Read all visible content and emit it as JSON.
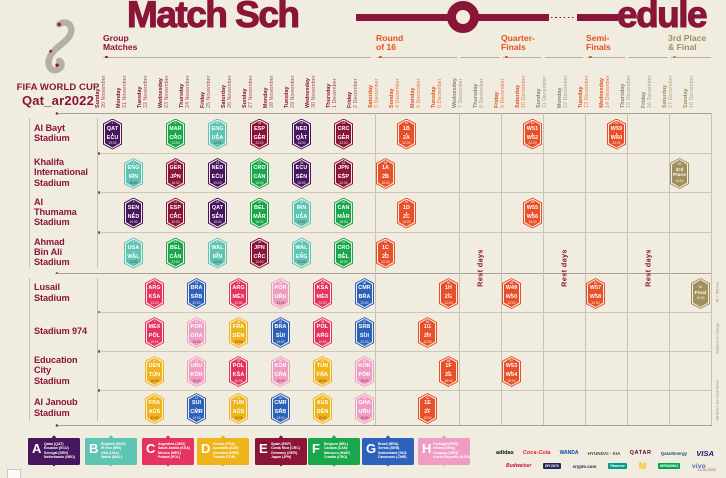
{
  "title": {
    "left": "Match Sch",
    "right": "edule"
  },
  "branding": {
    "line1": "FIFA WORLD CUP",
    "line2": "Qat_ar2022"
  },
  "colors": {
    "bg": "#f0ecdf",
    "maroon": "#8a1538",
    "orange": "#e4511e",
    "tan": "#a18f5f",
    "groups": {
      "A": "#46175e",
      "B": "#5ec4b4",
      "C": "#e53362",
      "D": "#f0b41b",
      "E": "#8a1538",
      "F": "#19a74b",
      "G": "#2d62bb",
      "H": "#f09dc4"
    }
  },
  "phases": [
    {
      "l1": "Group",
      "l2": "Matches"
    },
    {
      "l1": "Round",
      "l2": "of 16"
    },
    {
      "l1": "Quarter-",
      "l2": "Finals"
    },
    {
      "l1": "Semi-",
      "l2": "Finals"
    },
    {
      "l1": "3rd Place",
      "l2": "& Final"
    }
  ],
  "rest_label": "Rest days",
  "notes": [
    "W = Winner",
    "Subject to change",
    "All times are local times"
  ],
  "footer_date": "11.04.2022",
  "columns": [
    {
      "day": "Sunday",
      "date": "20 November",
      "ph": "group"
    },
    {
      "day": "Monday",
      "date": "21 November",
      "ph": "group"
    },
    {
      "day": "Tuesday",
      "date": "22 November",
      "ph": "group"
    },
    {
      "day": "Wednesday",
      "date": "23 November",
      "ph": "group"
    },
    {
      "day": "Thursday",
      "date": "24 November",
      "ph": "group"
    },
    {
      "day": "Friday",
      "date": "25 November",
      "ph": "group"
    },
    {
      "day": "Saturday",
      "date": "26 November",
      "ph": "group"
    },
    {
      "day": "Sunday",
      "date": "27 November",
      "ph": "group"
    },
    {
      "day": "Monday",
      "date": "28 November",
      "ph": "group"
    },
    {
      "day": "Tuesday",
      "date": "29 November",
      "ph": "group"
    },
    {
      "day": "Wednesday",
      "date": "30 November",
      "ph": "group"
    },
    {
      "day": "Thursday",
      "date": "1 December",
      "ph": "group"
    },
    {
      "day": "Friday",
      "date": "2 December",
      "ph": "group"
    },
    {
      "day": "Saturday",
      "date": "3 December",
      "ph": "r16"
    },
    {
      "day": "Sunday",
      "date": "4 December",
      "ph": "r16"
    },
    {
      "day": "Monday",
      "date": "5 December",
      "ph": "r16"
    },
    {
      "day": "Tuesday",
      "date": "6 December",
      "ph": "r16"
    },
    {
      "day": "Wednesday",
      "date": "7 December",
      "ph": "rest"
    },
    {
      "day": "Thursday",
      "date": "8 December",
      "ph": "rest"
    },
    {
      "day": "Friday",
      "date": "9 December",
      "ph": "qf"
    },
    {
      "day": "Saturday",
      "date": "10 December",
      "ph": "qf"
    },
    {
      "day": "Sunday",
      "date": "11 December",
      "ph": "rest"
    },
    {
      "day": "Monday",
      "date": "12 December",
      "ph": "rest"
    },
    {
      "day": "Tuesday",
      "date": "13 December",
      "ph": "sf"
    },
    {
      "day": "Wednesday",
      "date": "14 December",
      "ph": "sf"
    },
    {
      "day": "Thursday",
      "date": "15 December",
      "ph": "rest"
    },
    {
      "day": "Friday",
      "date": "16 December",
      "ph": "rest"
    },
    {
      "day": "Saturday",
      "date": "17 December",
      "ph": "final"
    },
    {
      "day": "Sunday",
      "date": "18 December",
      "ph": "final"
    }
  ],
  "stadiums": [
    {
      "lines": [
        "Al Bayt",
        "Stadium"
      ]
    },
    {
      "lines": [
        "Khalifa",
        "International",
        "Stadium"
      ]
    },
    {
      "lines": [
        "Al",
        "Thumama",
        "Stadium"
      ]
    },
    {
      "lines": [
        "Ahmad",
        "Bin Ali",
        "Stadium"
      ]
    },
    {
      "lines": [
        "Lusail",
        "Stadium"
      ]
    },
    {
      "lines": [
        "Stadium 974"
      ]
    },
    {
      "lines": [
        "Education",
        "City",
        "Stadium"
      ]
    },
    {
      "lines": [
        "Al Janoub",
        "Stadium"
      ]
    }
  ],
  "matches": [
    {
      "n": "1",
      "a": "QAT",
      "b": "ECU",
      "t": "19:00",
      "g": "A",
      "c": 0,
      "s": 0
    },
    {
      "n": "2",
      "a": "ENG",
      "b": "IRN",
      "t": "16:00",
      "g": "B",
      "c": 1,
      "s": 1
    },
    {
      "n": "3",
      "a": "SEN",
      "b": "NED",
      "t": "19:00",
      "g": "A",
      "c": 1,
      "s": 2
    },
    {
      "n": "4",
      "a": "USA",
      "b": "WAL",
      "t": "22:00",
      "g": "B",
      "c": 1,
      "s": 3
    },
    {
      "n": "5",
      "a": "ARG",
      "b": "KSA",
      "t": "13:00",
      "g": "C",
      "c": 2,
      "s": 4
    },
    {
      "n": "6",
      "a": "DEN",
      "b": "TUN",
      "t": "16:00",
      "g": "D",
      "c": 2,
      "s": 6
    },
    {
      "n": "7",
      "a": "MEX",
      "b": "POL",
      "t": "19:00",
      "g": "C",
      "c": 2,
      "s": 5
    },
    {
      "n": "8",
      "a": "FRA",
      "b": "AUS",
      "t": "22:00",
      "g": "D",
      "c": 2,
      "s": 7
    },
    {
      "n": "9",
      "a": "MAR",
      "b": "CRO",
      "t": "13:00",
      "g": "F",
      "c": 3,
      "s": 0
    },
    {
      "n": "10",
      "a": "GER",
      "b": "JPN",
      "t": "16:00",
      "g": "E",
      "c": 3,
      "s": 1
    },
    {
      "n": "11",
      "a": "ESP",
      "b": "CRC",
      "t": "19:00",
      "g": "E",
      "c": 3,
      "s": 2
    },
    {
      "n": "12",
      "a": "BEL",
      "b": "CAN",
      "t": "22:00",
      "g": "F",
      "c": 3,
      "s": 3
    },
    {
      "n": "13",
      "a": "SUI",
      "b": "CMR",
      "t": "13:00",
      "g": "G",
      "c": 4,
      "s": 7
    },
    {
      "n": "14",
      "a": "URU",
      "b": "KOR",
      "t": "16:00",
      "g": "H",
      "c": 4,
      "s": 6
    },
    {
      "n": "15",
      "a": "POR",
      "b": "GHA",
      "t": "19:00",
      "g": "H",
      "c": 4,
      "s": 5
    },
    {
      "n": "16",
      "a": "BRA",
      "b": "SRB",
      "t": "22:00",
      "g": "G",
      "c": 4,
      "s": 4
    },
    {
      "n": "17",
      "a": "WAL",
      "b": "IRN",
      "t": "13:00",
      "g": "B",
      "c": 5,
      "s": 3
    },
    {
      "n": "18",
      "a": "QAT",
      "b": "SEN",
      "t": "16:00",
      "g": "A",
      "c": 5,
      "s": 2
    },
    {
      "n": "19",
      "a": "NED",
      "b": "ECU",
      "t": "19:00",
      "g": "A",
      "c": 5,
      "s": 1
    },
    {
      "n": "20",
      "a": "ENG",
      "b": "USA",
      "t": "22:00",
      "g": "B",
      "c": 5,
      "s": 0
    },
    {
      "n": "21",
      "a": "TUN",
      "b": "AUS",
      "t": "13:00",
      "g": "D",
      "c": 6,
      "s": 7
    },
    {
      "n": "22",
      "a": "POL",
      "b": "KSA",
      "t": "16:00",
      "g": "C",
      "c": 6,
      "s": 6
    },
    {
      "n": "23",
      "a": "FRA",
      "b": "DEN",
      "t": "19:00",
      "g": "D",
      "c": 6,
      "s": 5
    },
    {
      "n": "24",
      "a": "ARG",
      "b": "MEX",
      "t": "22:00",
      "g": "C",
      "c": 6,
      "s": 4
    },
    {
      "n": "25",
      "a": "JPN",
      "b": "CRC",
      "t": "13:00",
      "g": "E",
      "c": 7,
      "s": 3
    },
    {
      "n": "26",
      "a": "BEL",
      "b": "MAR",
      "t": "16:00",
      "g": "F",
      "c": 7,
      "s": 2
    },
    {
      "n": "27",
      "a": "CRO",
      "b": "CAN",
      "t": "19:00",
      "g": "F",
      "c": 7,
      "s": 1
    },
    {
      "n": "28",
      "a": "ESP",
      "b": "GER",
      "t": "22:00",
      "g": "E",
      "c": 7,
      "s": 0
    },
    {
      "n": "29",
      "a": "CMR",
      "b": "SRB",
      "t": "13:00",
      "g": "G",
      "c": 8,
      "s": 7
    },
    {
      "n": "30",
      "a": "KOR",
      "b": "GHA",
      "t": "16:00",
      "g": "H",
      "c": 8,
      "s": 6
    },
    {
      "n": "31",
      "a": "BRA",
      "b": "SUI",
      "t": "19:00",
      "g": "G",
      "c": 8,
      "s": 5
    },
    {
      "n": "32",
      "a": "POR",
      "b": "URU",
      "t": "22:00",
      "g": "H",
      "c": 8,
      "s": 4
    },
    {
      "n": "33",
      "a": "ECU",
      "b": "SEN",
      "t": "18:00",
      "g": "A",
      "c": 9,
      "s": 1
    },
    {
      "n": "34",
      "a": "NED",
      "b": "QAT",
      "t": "18:00",
      "g": "A",
      "c": 9,
      "s": 0
    },
    {
      "n": "35",
      "a": "IRN",
      "b": "USA",
      "t": "22:00",
      "g": "B",
      "c": 9,
      "s": 2
    },
    {
      "n": "36",
      "a": "WAL",
      "b": "ENG",
      "t": "22:00",
      "g": "B",
      "c": 9,
      "s": 3
    },
    {
      "n": "37",
      "a": "TUN",
      "b": "FRA",
      "t": "18:00",
      "g": "D",
      "c": 10,
      "s": 6
    },
    {
      "n": "38",
      "a": "AUS",
      "b": "DEN",
      "t": "18:00",
      "g": "D",
      "c": 10,
      "s": 7
    },
    {
      "n": "39",
      "a": "POL",
      "b": "ARG",
      "t": "22:00",
      "g": "C",
      "c": 10,
      "s": 5
    },
    {
      "n": "40",
      "a": "KSA",
      "b": "MEX",
      "t": "22:00",
      "g": "C",
      "c": 10,
      "s": 4
    },
    {
      "n": "41",
      "a": "CRO",
      "b": "BEL",
      "t": "18:00",
      "g": "F",
      "c": 11,
      "s": 3
    },
    {
      "n": "42",
      "a": "CAN",
      "b": "MAR",
      "t": "18:00",
      "g": "F",
      "c": 11,
      "s": 2
    },
    {
      "n": "43",
      "a": "JPN",
      "b": "ESP",
      "t": "22:00",
      "g": "E",
      "c": 11,
      "s": 1
    },
    {
      "n": "44",
      "a": "CRC",
      "b": "GER",
      "t": "22:00",
      "g": "E",
      "c": 11,
      "s": 0
    },
    {
      "n": "45",
      "a": "KOR",
      "b": "POR",
      "t": "18:00",
      "g": "H",
      "c": 12,
      "s": 6
    },
    {
      "n": "46",
      "a": "GHA",
      "b": "URU",
      "t": "18:00",
      "g": "H",
      "c": 12,
      "s": 7
    },
    {
      "n": "47",
      "a": "SRB",
      "b": "SUI",
      "t": "22:00",
      "g": "G",
      "c": 12,
      "s": 5
    },
    {
      "n": "48",
      "a": "CMR",
      "b": "BRA",
      "t": "22:00",
      "g": "G",
      "c": 12,
      "s": 4
    },
    {
      "n": "49",
      "a": "1A",
      "b": "2B",
      "t": "18:00",
      "g": "KO",
      "c": 13,
      "s": 1
    },
    {
      "n": "50",
      "a": "1C",
      "b": "2D",
      "t": "22:00",
      "g": "KO",
      "c": 13,
      "s": 3
    },
    {
      "n": "51",
      "a": "1D",
      "b": "2C",
      "t": "18:00",
      "g": "KO",
      "c": 14,
      "s": 2
    },
    {
      "n": "52",
      "a": "1B",
      "b": "2A",
      "t": "22:00",
      "g": "KO",
      "c": 14,
      "s": 0
    },
    {
      "n": "53",
      "a": "1E",
      "b": "2F",
      "t": "18:00",
      "g": "KO",
      "c": 15,
      "s": 7
    },
    {
      "n": "54",
      "a": "1G",
      "b": "2H",
      "t": "22:00",
      "g": "KO",
      "c": 15,
      "s": 5
    },
    {
      "n": "55",
      "a": "1F",
      "b": "2E",
      "t": "18:00",
      "g": "KO",
      "c": 16,
      "s": 6
    },
    {
      "n": "56",
      "a": "1H",
      "b": "2G",
      "t": "22:00",
      "g": "KO",
      "c": 16,
      "s": 4
    },
    {
      "n": "57",
      "a": "W53",
      "b": "W54",
      "t": "18:00",
      "g": "KO",
      "c": 19,
      "s": 6
    },
    {
      "n": "58",
      "a": "W49",
      "b": "W50",
      "t": "22:00",
      "g": "KO",
      "c": 19,
      "s": 4
    },
    {
      "n": "59",
      "a": "W55",
      "b": "W56",
      "t": "18:00",
      "g": "KO",
      "c": 20,
      "s": 2
    },
    {
      "n": "60",
      "a": "W51",
      "b": "W52",
      "t": "22:00",
      "g": "KO",
      "c": 20,
      "s": 0
    },
    {
      "n": "61",
      "a": "W57",
      "b": "W58",
      "t": "22:00",
      "g": "KO",
      "c": 23,
      "s": 4
    },
    {
      "n": "62",
      "a": "W59",
      "b": "W60",
      "t": "22:00",
      "g": "KO",
      "c": 24,
      "s": 0
    },
    {
      "n": "63",
      "a": "3rd",
      "b": "Place",
      "t": "18:00",
      "g": "FIN",
      "c": 27,
      "s": 1,
      "single": true
    },
    {
      "n": "64",
      "a": "Final",
      "b": "",
      "t": "18:00",
      "g": "FIN",
      "c": 28,
      "s": 4,
      "single": true
    }
  ],
  "legend": {
    "groups": [
      {
        "letter": "A",
        "color": "#46175e",
        "teams": [
          "Qatar (QAT)",
          "Ecuador (ECU)",
          "Senegal (SEN)",
          "Netherlands (NED)"
        ]
      },
      {
        "letter": "B",
        "color": "#5ec4b4",
        "teams": [
          "England (ENG)",
          "IR Iran (IRN)",
          "USA (USA)",
          "Wales (WAL)"
        ]
      },
      {
        "letter": "C",
        "color": "#e53362",
        "teams": [
          "Argentina (ARG)",
          "Saudi Arabia (KSA)",
          "Mexico (MEX)",
          "Poland (POL)"
        ]
      },
      {
        "letter": "D",
        "color": "#f0b41b",
        "teams": [
          "France (FRA)",
          "Australia (AUS)",
          "Denmark (DEN)",
          "Tunisia (TUN)"
        ]
      },
      {
        "letter": "E",
        "color": "#8a1538",
        "teams": [
          "Spain (ESP)",
          "Costa Rica (CRC)",
          "Germany (GER)",
          "Japan (JPN)"
        ]
      },
      {
        "letter": "F",
        "color": "#19a74b",
        "teams": [
          "Belgium (BEL)",
          "Canada (CAN)",
          "Morocco (MAR)",
          "Croatia (CRO)"
        ]
      },
      {
        "letter": "G",
        "color": "#2d62bb",
        "teams": [
          "Brazil (BRA)",
          "Serbia (SRB)",
          "Switzerland (SUI)",
          "Cameroon (CMR)"
        ]
      },
      {
        "letter": "H",
        "color": "#f09dc4",
        "teams": [
          "Portugal (POR)",
          "Ghana (GHA)",
          "Uruguay (URU)",
          "Korea Republic (KOR)"
        ]
      }
    ]
  },
  "sponsors": {
    "row1": [
      {
        "id": "adidas",
        "label": "adidas"
      },
      {
        "id": "cocacola",
        "label": "Coca-Cola"
      },
      {
        "id": "wanda",
        "label": "WANDA"
      },
      {
        "id": "hyundaikia",
        "label": "HYUNDAI · KIA"
      },
      {
        "id": "qatarair",
        "label": "QATAR"
      },
      {
        "id": "qatarenergy",
        "label": "QatarEnergy"
      },
      {
        "id": "visa",
        "label": "VISA"
      }
    ],
    "row2": [
      {
        "id": "budweiser",
        "label": "Budweiser"
      },
      {
        "id": "byjus",
        "label": "BYJU'S"
      },
      {
        "id": "crypto",
        "label": "crypto.com"
      },
      {
        "id": "hisense",
        "label": "Hisense"
      },
      {
        "id": "mcdonalds",
        "label": "M"
      },
      {
        "id": "mengniu",
        "label": "MENGNIU"
      },
      {
        "id": "vivo",
        "label": "vivo"
      }
    ]
  }
}
